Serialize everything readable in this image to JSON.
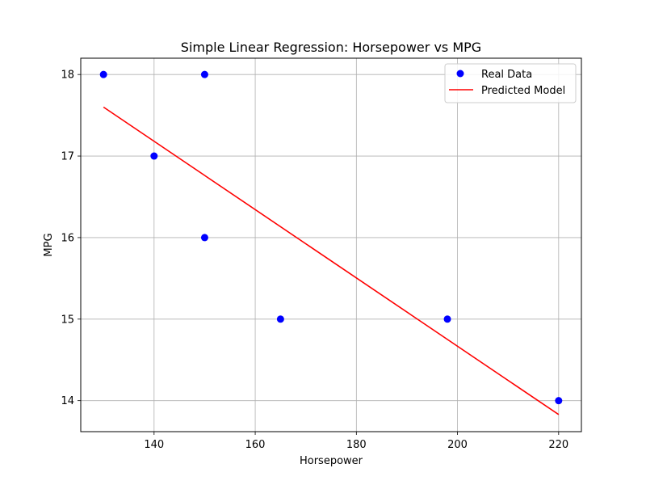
{
  "chart_data": {
    "type": "scatter",
    "title": "Simple Linear Regression: Horsepower vs MPG",
    "xlabel": "Horsepower",
    "ylabel": "MPG",
    "xlim": [
      125.5,
      224.5
    ],
    "ylim": [
      13.62,
      18.2
    ],
    "xticks": [
      140,
      160,
      180,
      200,
      220
    ],
    "yticks": [
      14,
      15,
      16,
      17,
      18
    ],
    "grid": true,
    "legend_position": "top-right",
    "series": [
      {
        "name": "Real Data",
        "kind": "scatter",
        "color": "#0000ff",
        "points": [
          {
            "x": 130,
            "y": 18
          },
          {
            "x": 150,
            "y": 18
          },
          {
            "x": 140,
            "y": 17
          },
          {
            "x": 150,
            "y": 16
          },
          {
            "x": 165,
            "y": 15
          },
          {
            "x": 198,
            "y": 15
          },
          {
            "x": 220,
            "y": 14
          }
        ]
      },
      {
        "name": "Predicted Model",
        "kind": "line",
        "color": "#ff0000",
        "points": [
          {
            "x": 130,
            "y": 17.6
          },
          {
            "x": 220,
            "y": 13.83
          }
        ]
      }
    ]
  }
}
